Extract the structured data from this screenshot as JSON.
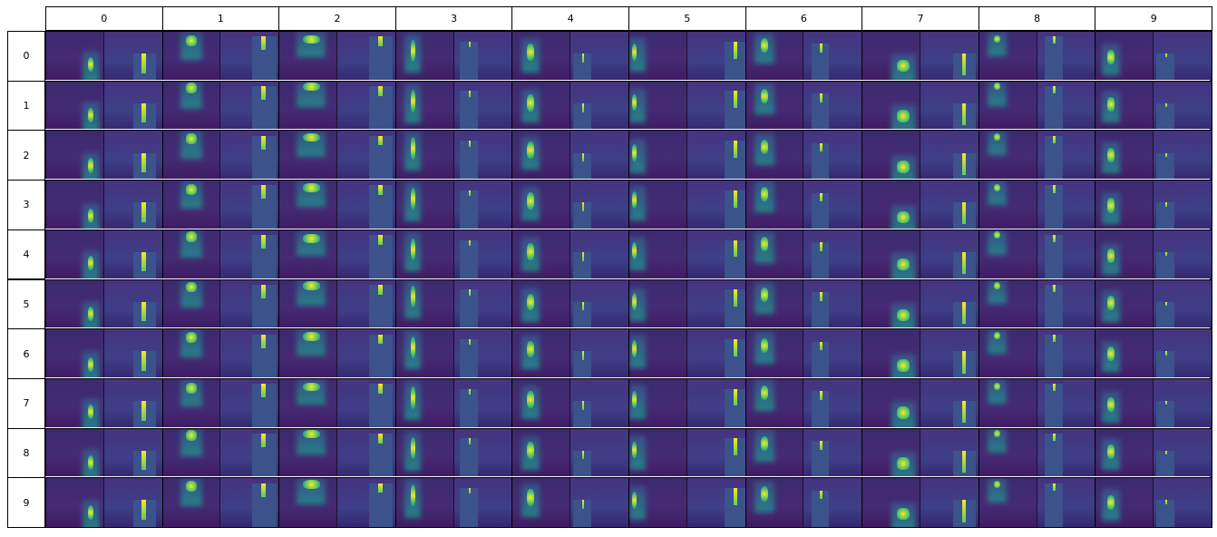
{
  "columns": [
    "0",
    "1",
    "2",
    "3",
    "4",
    "5",
    "6",
    "7",
    "8",
    "9"
  ],
  "rows": [
    "0",
    "1",
    "2",
    "3",
    "4",
    "5",
    "6",
    "7",
    "8",
    "9"
  ],
  "colors": {
    "background_dark": "#440154",
    "mid_blue": "#3b528b",
    "teal": "#21918c",
    "green": "#5ec962",
    "yellow": "#fde725"
  }
}
